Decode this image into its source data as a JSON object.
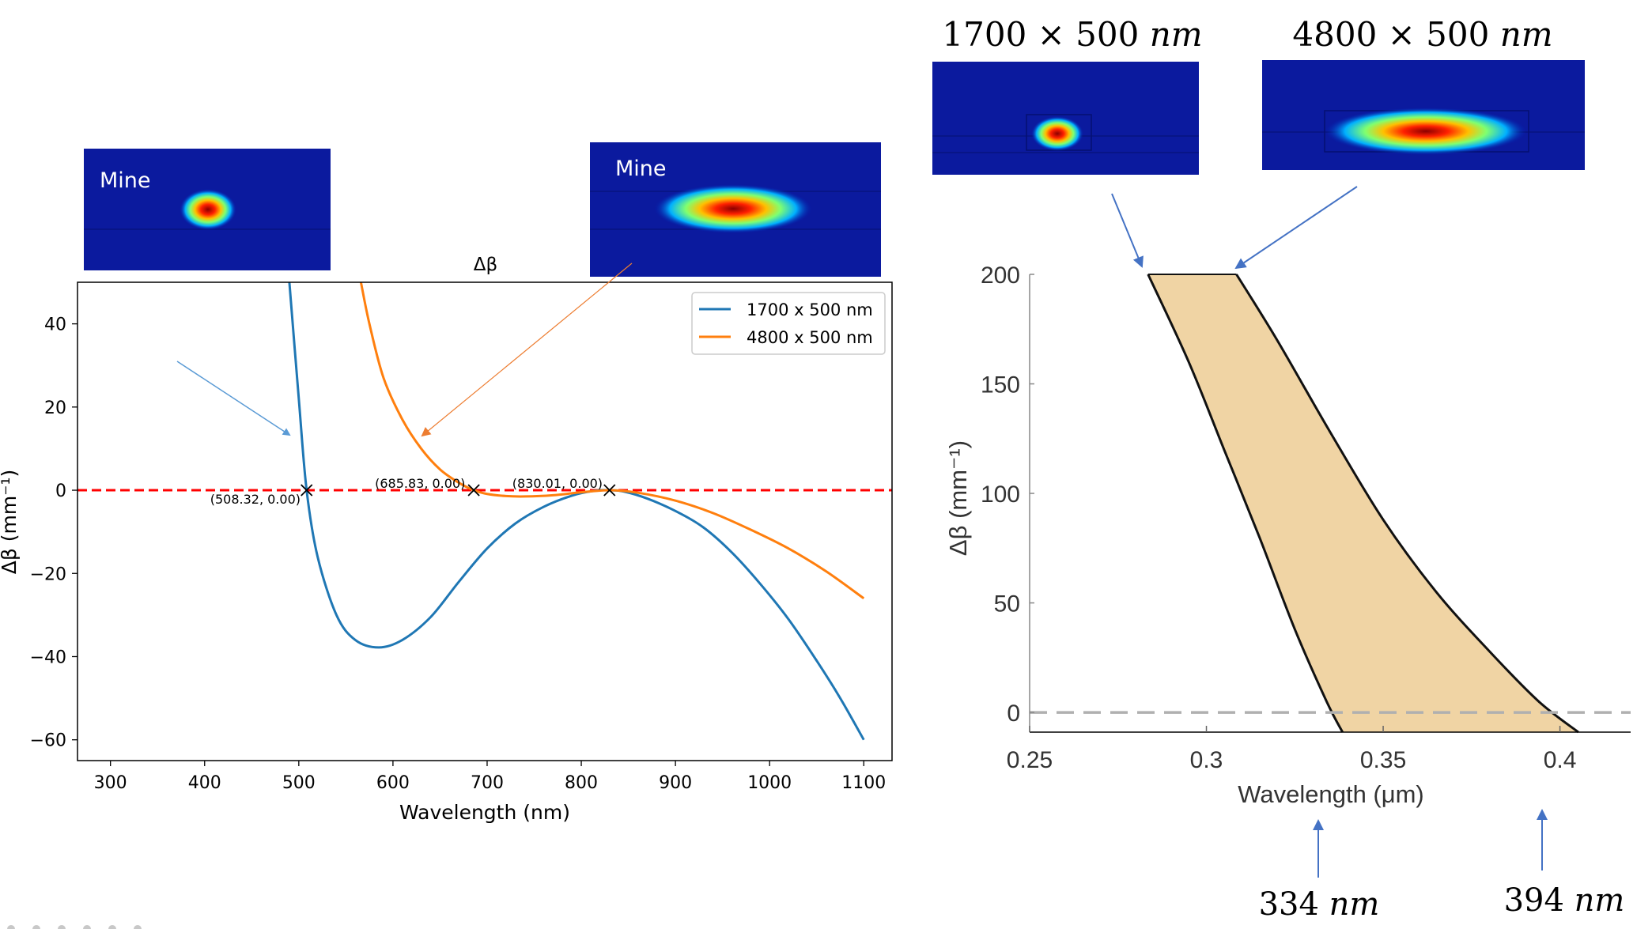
{
  "chart_data": [
    {
      "type": "line",
      "title": "Δβ",
      "xlabel": "Wavelength (nm)",
      "ylabel": "Δβ (mm⁻¹)",
      "xlim": [
        265,
        1130
      ],
      "ylim": [
        -65,
        50
      ],
      "xticks": [
        300,
        400,
        500,
        600,
        700,
        800,
        900,
        1000,
        1100
      ],
      "yticks": [
        40,
        20,
        0,
        -20,
        -40,
        -60
      ],
      "ytick_labels": [
        "40",
        "20",
        "0",
        "−20",
        "−40",
        "−60"
      ],
      "legend_location": "top-right",
      "series": [
        {
          "name": "1700 x 500 nm",
          "color": "#1f77b4",
          "x": [
            490,
            500,
            508.32,
            520,
            540,
            560,
            585,
            610,
            640,
            670,
            700,
            730,
            760,
            790,
            815,
            830,
            845,
            870,
            900,
            930,
            960,
            990,
            1020,
            1050,
            1075,
            1100
          ],
          "y": [
            50,
            22,
            0,
            -16,
            -30,
            -36,
            -37.8,
            -36,
            -30.5,
            -22,
            -14,
            -8,
            -4,
            -1.3,
            -0.1,
            0,
            -0.3,
            -2,
            -5,
            -9,
            -15,
            -22.5,
            -31,
            -41,
            -50,
            -60
          ]
        },
        {
          "name": "4800 x 500 nm",
          "color": "#ff7f0e",
          "x": [
            566,
            575,
            590,
            610,
            630,
            650,
            670,
            685.83,
            700,
            720,
            740,
            770,
            800,
            830.01,
            860,
            900,
            940,
            980,
            1020,
            1060,
            1100
          ],
          "y": [
            50,
            40,
            27,
            17,
            10,
            5,
            1.8,
            0,
            -0.9,
            -1.4,
            -1.5,
            -1.2,
            -0.5,
            0,
            -0.6,
            -2.5,
            -5.5,
            -9.5,
            -14,
            -19.5,
            -26
          ]
        }
      ],
      "reference_line": {
        "y": 0,
        "color": "#ff0000",
        "style": "dashed"
      },
      "annotations": [
        {
          "x": 508.32,
          "y": 0,
          "label": "(508.32, 0.00)"
        },
        {
          "x": 685.83,
          "y": 0,
          "label": "(685.83, 0.00)"
        },
        {
          "x": 830.01,
          "y": 0,
          "label": "(830.01, 0.00)"
        }
      ],
      "insets": [
        {
          "label": "Mine",
          "mode": "1700 x 500 nm"
        },
        {
          "label": "Mine",
          "mode": "4800 x 500 nm"
        }
      ]
    },
    {
      "type": "area",
      "title": "",
      "xlabel": "Wavelength (μm)",
      "ylabel": "Δβ (mm⁻¹)",
      "xlim": [
        0.25,
        0.42
      ],
      "ylim": [
        -9,
        200
      ],
      "xticks": [
        0.25,
        0.3,
        0.35,
        0.4
      ],
      "xtick_labels": [
        "0.25",
        "0.3",
        "0.35",
        "0.4"
      ],
      "yticks": [
        200,
        150,
        100,
        50,
        0
      ],
      "fill_color": "#f0d4a4",
      "series": [
        {
          "name": "1700 × 500 nm",
          "x": [
            0.2835,
            0.295,
            0.305,
            0.315,
            0.325,
            0.334,
            0.3385
          ],
          "y": [
            200,
            160,
            120,
            80,
            38,
            5,
            -9
          ]
        },
        {
          "name": "4800 × 500 nm",
          "x": [
            0.3085,
            0.32,
            0.335,
            0.35,
            0.365,
            0.38,
            0.394,
            0.4052
          ],
          "y": [
            200,
            170,
            128,
            88,
            55,
            28,
            5,
            -9
          ]
        }
      ],
      "reference_line": {
        "y": 0,
        "color": "#b0b0b0",
        "style": "dashed"
      },
      "mode_titles": [
        "1700 × 500 ",
        "4800 × 500 "
      ],
      "unit_nm": "nm",
      "bottom_labels": [
        {
          "value": "334 ",
          "unit": "nm",
          "x": 0.334
        },
        {
          "value": "394 ",
          "unit": "nm",
          "x": 0.394
        }
      ]
    }
  ]
}
